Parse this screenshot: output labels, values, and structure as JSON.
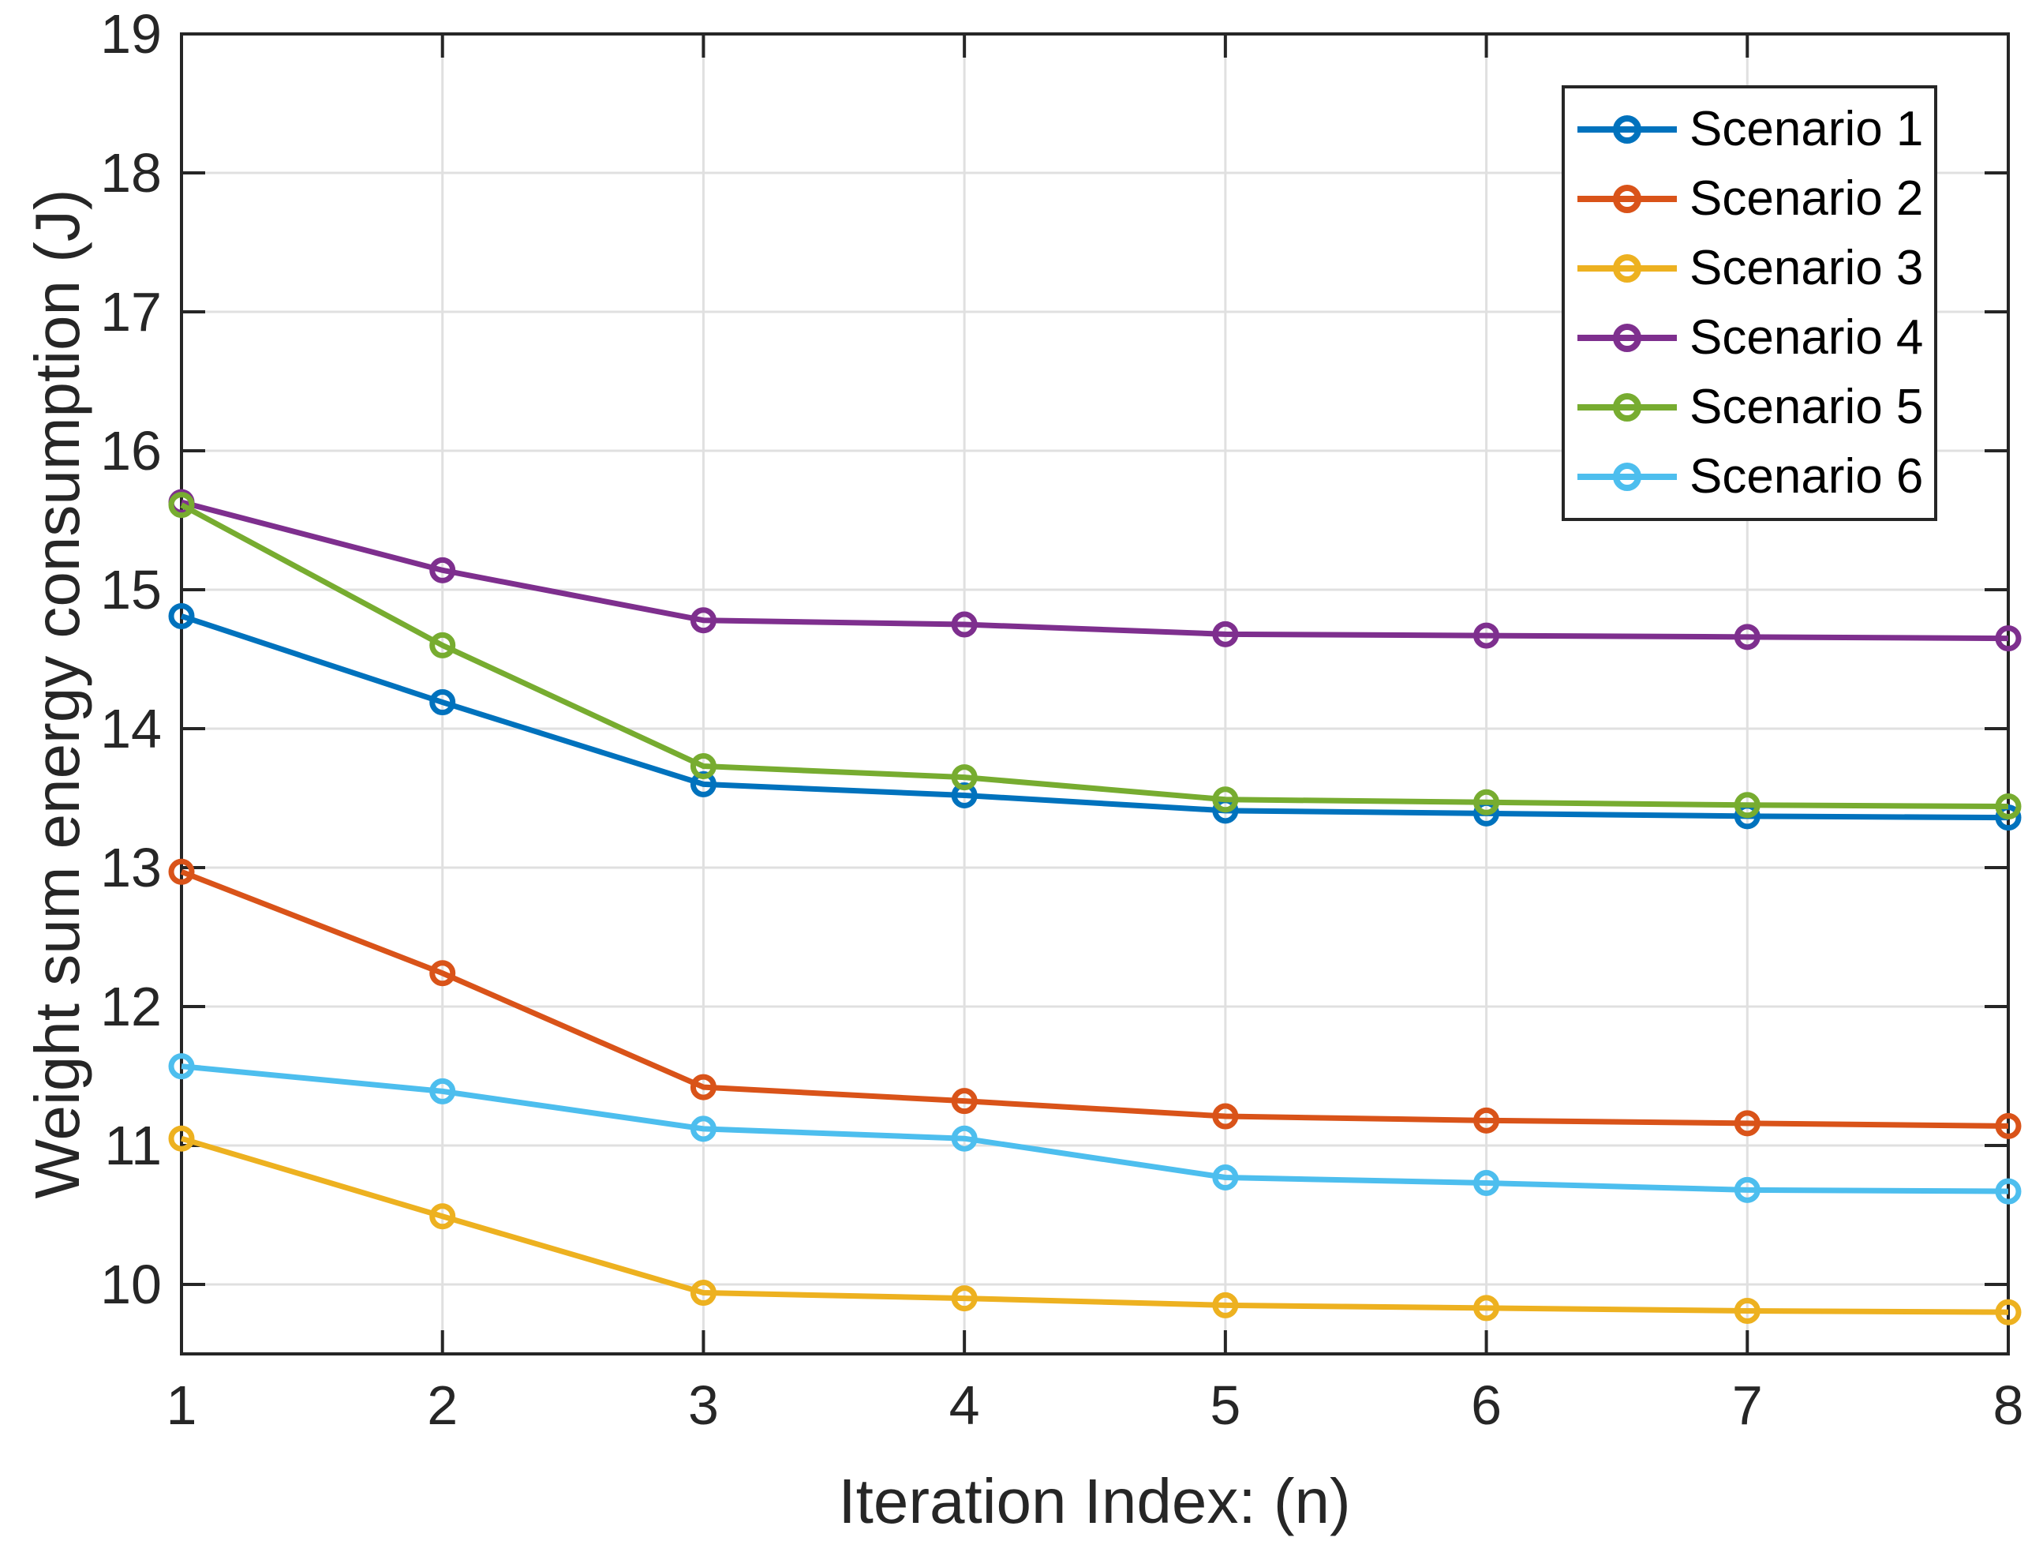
{
  "figure": {
    "background": "#ffffff",
    "axis_color": "#262626",
    "grid_color": "#e0e0e0",
    "tick_label_color": "#262626"
  },
  "chart_data": {
    "type": "line",
    "title": "",
    "xlabel": "Iteration Index: (n)",
    "ylabel": "Weight sum energy consumption (J)",
    "xlim": [
      1,
      8
    ],
    "ylim": [
      9.5,
      19
    ],
    "grid": true,
    "legend_position": "top-right",
    "x": [
      1,
      2,
      3,
      4,
      5,
      6,
      7,
      8
    ],
    "xtick_labels": [
      "1",
      "2",
      "3",
      "4",
      "5",
      "6",
      "7",
      "8"
    ],
    "yticks": [
      10,
      11,
      12,
      13,
      14,
      15,
      16,
      17,
      18,
      19
    ],
    "ytick_labels": [
      "10",
      "11",
      "12",
      "13",
      "14",
      "15",
      "16",
      "17",
      "18",
      "19"
    ],
    "series": [
      {
        "name": "Scenario 1",
        "color": "#0072BD",
        "values": [
          14.81,
          14.19,
          13.6,
          13.52,
          13.41,
          13.39,
          13.37,
          13.36
        ]
      },
      {
        "name": "Scenario 2",
        "color": "#D95319",
        "values": [
          12.97,
          12.24,
          11.42,
          11.32,
          11.21,
          11.18,
          11.16,
          11.14
        ]
      },
      {
        "name": "Scenario 3",
        "color": "#EDB120",
        "values": [
          11.05,
          10.49,
          9.94,
          9.9,
          9.85,
          9.83,
          9.81,
          9.8
        ]
      },
      {
        "name": "Scenario 4",
        "color": "#7E2F8E",
        "values": [
          15.63,
          15.14,
          14.78,
          14.75,
          14.68,
          14.67,
          14.66,
          14.65
        ]
      },
      {
        "name": "Scenario 5",
        "color": "#77AC30",
        "values": [
          15.61,
          14.6,
          13.73,
          13.65,
          13.49,
          13.47,
          13.45,
          13.44
        ]
      },
      {
        "name": "Scenario 6",
        "color": "#4DBEEE",
        "values": [
          11.57,
          11.39,
          11.12,
          11.05,
          10.77,
          10.73,
          10.68,
          10.67
        ]
      }
    ]
  }
}
